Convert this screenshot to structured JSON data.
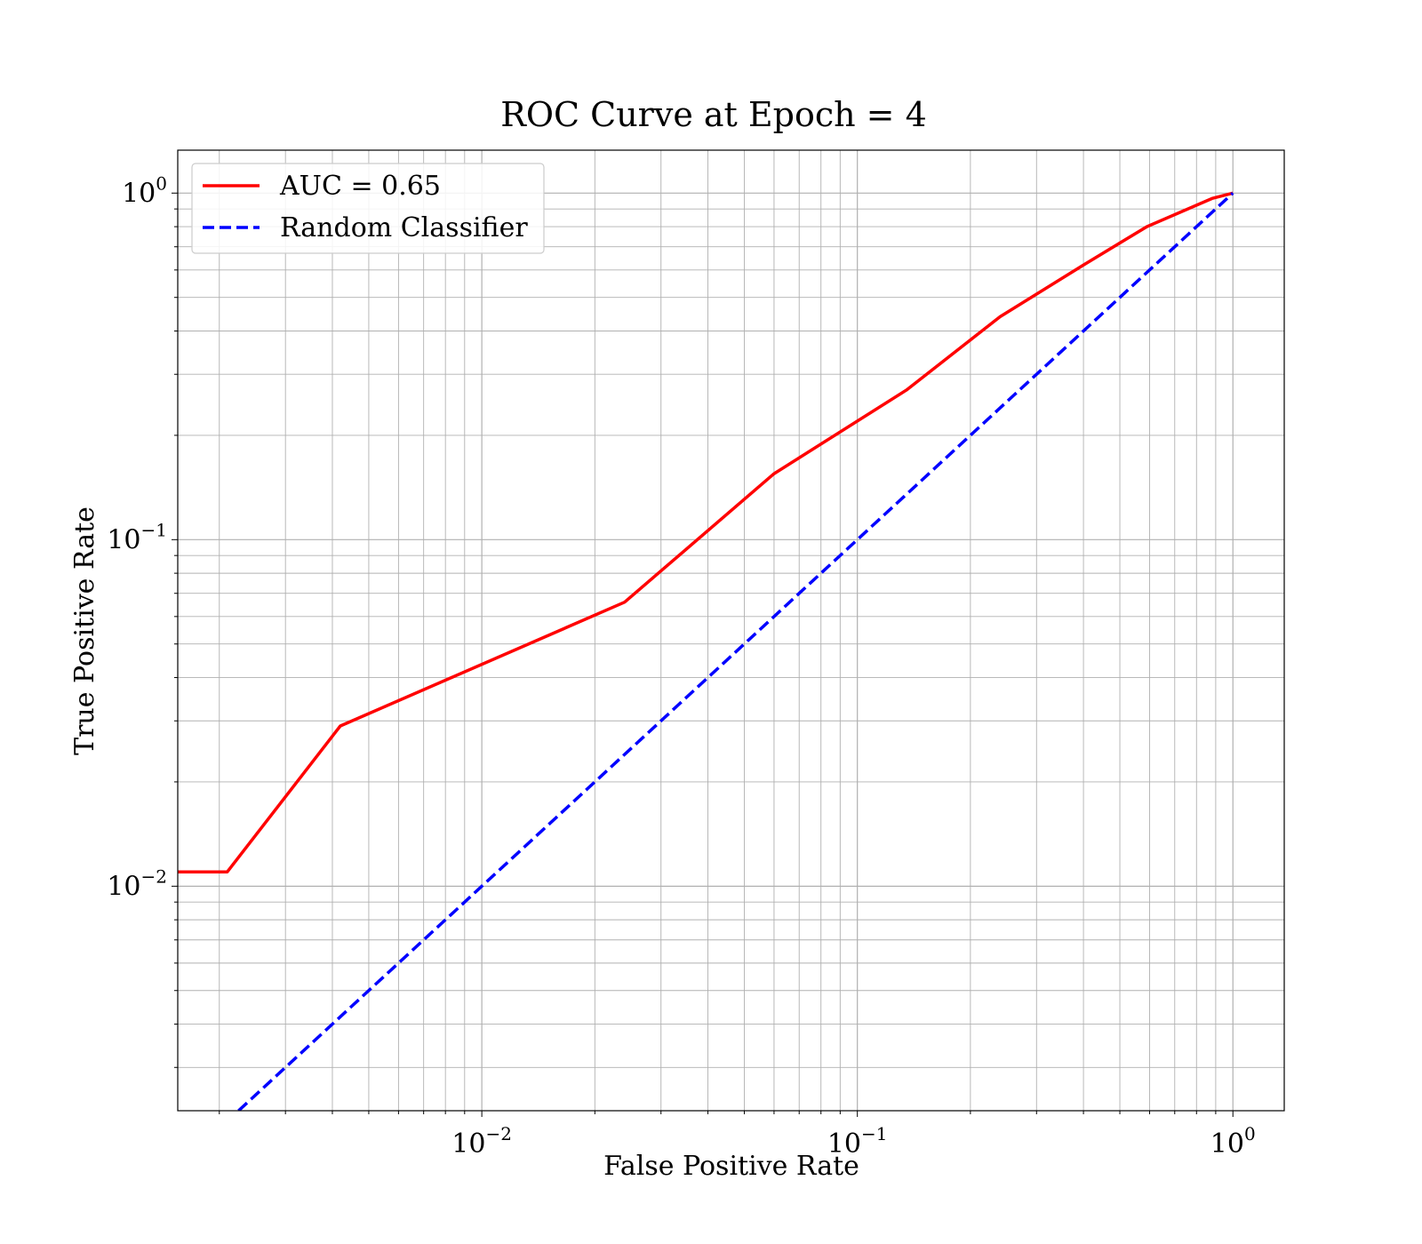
{
  "chart_data": {
    "type": "line",
    "title": "ROC Curve at Epoch = 4",
    "xlabel": "False Positive Rate",
    "ylabel": "True Positive Rate",
    "xscale": "log",
    "yscale": "log",
    "xlim": [
      0.00155,
      1.37
    ],
    "ylim": [
      0.00225,
      1.33
    ],
    "grid": true,
    "grid_which": "both",
    "legend_position": "upper-left",
    "x_ticks": [
      {
        "value": 0.01,
        "base": "10",
        "exp": "−2"
      },
      {
        "value": 0.1,
        "base": "10",
        "exp": "−1"
      },
      {
        "value": 1,
        "base": "10",
        "exp": "0"
      }
    ],
    "y_ticks": [
      {
        "value": 0.01,
        "base": "10",
        "exp": "−2"
      },
      {
        "value": 0.1,
        "base": "10",
        "exp": "−1"
      },
      {
        "value": 1,
        "base": "10",
        "exp": "0"
      }
    ],
    "series": [
      {
        "name": "AUC = 0.65",
        "color": "#ff0000",
        "style": "solid",
        "x": [
          0.00155,
          0.0021,
          0.0042,
          0.024,
          0.06,
          0.135,
          0.24,
          0.4,
          0.59,
          0.88,
          1.0
        ],
        "y": [
          0.011,
          0.011,
          0.029,
          0.066,
          0.155,
          0.27,
          0.44,
          0.62,
          0.8,
          0.965,
          1.0
        ]
      },
      {
        "name": "Random Classifier",
        "color": "#0000ff",
        "style": "dashed",
        "x": [
          0.00225,
          1.0
        ],
        "y": [
          0.00225,
          1.0
        ]
      }
    ]
  }
}
